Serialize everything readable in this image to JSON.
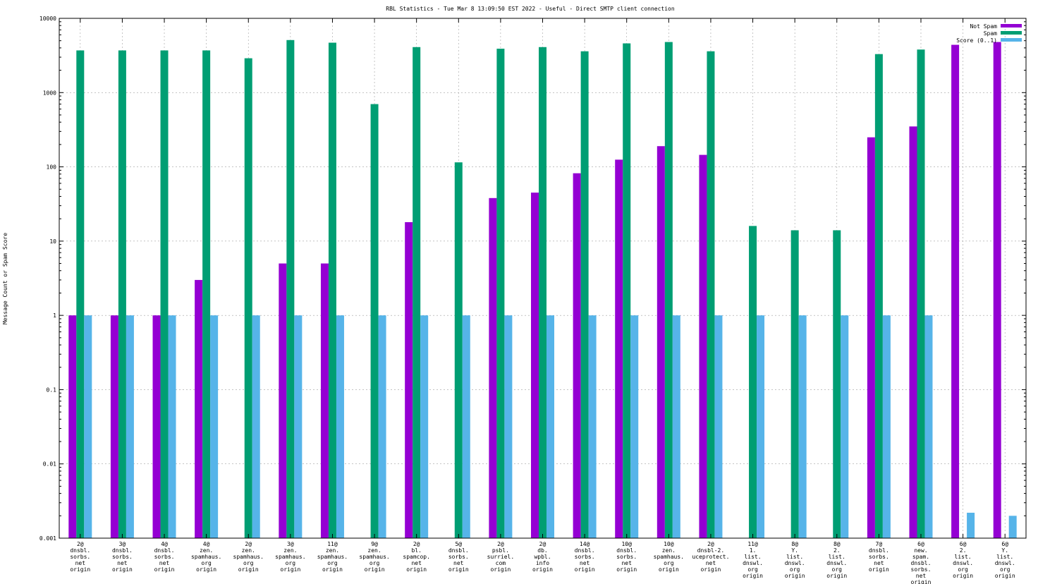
{
  "chart_data": {
    "type": "bar",
    "title": "RBL Statistics - Tue Mar  8 13:09:50 EST 2022 - Useful - Direct SMTP client connection",
    "ylabel": "Message Count or Spam Score",
    "xlabel": "",
    "yscale": "log",
    "ylim": [
      0.001,
      10000
    ],
    "yticks": [
      "0.001",
      "0.01",
      "0.1",
      "1",
      "10",
      "100",
      "1000",
      "10000"
    ],
    "grid": true,
    "legend_position": "top-right",
    "categories": [
      [
        "2@",
        "dnsbl.",
        "sorbs.",
        "net",
        "origin"
      ],
      [
        "3@",
        "dnsbl.",
        "sorbs.",
        "net",
        "origin"
      ],
      [
        "4@",
        "dnsbl.",
        "sorbs.",
        "net",
        "origin"
      ],
      [
        "4@",
        "zen.",
        "spamhaus.",
        "org",
        "origin"
      ],
      [
        "2@",
        "zen.",
        "spamhaus.",
        "org",
        "origin"
      ],
      [
        "3@",
        "zen.",
        "spamhaus.",
        "org",
        "origin"
      ],
      [
        "11@",
        "zen.",
        "spamhaus.",
        "org",
        "origin"
      ],
      [
        "9@",
        "zen.",
        "spamhaus.",
        "org",
        "origin"
      ],
      [
        "2@",
        "bl.",
        "spamcop.",
        "net",
        "origin"
      ],
      [
        "5@",
        "dnsbl.",
        "sorbs.",
        "net",
        "origin"
      ],
      [
        "2@",
        "psbl.",
        "surriel.",
        "com",
        "origin"
      ],
      [
        "2@",
        "db.",
        "wpbl.",
        "info",
        "origin"
      ],
      [
        "14@",
        "dnsbl.",
        "sorbs.",
        "net",
        "origin"
      ],
      [
        "10@",
        "dnsbl.",
        "sorbs.",
        "net",
        "origin"
      ],
      [
        "10@",
        "zen.",
        "spamhaus.",
        "org",
        "origin"
      ],
      [
        "2@",
        "dnsbl-2.",
        "uceprotect.",
        "net",
        "origin"
      ],
      [
        "11@",
        "1.",
        "list.",
        "dnswl.",
        "org",
        "origin"
      ],
      [
        "8@",
        "Y.",
        "list.",
        "dnswl.",
        "org",
        "origin"
      ],
      [
        "8@",
        "2.",
        "list.",
        "dnswl.",
        "org",
        "origin"
      ],
      [
        "7@",
        "dnsbl.",
        "sorbs.",
        "net",
        "origin"
      ],
      [
        "6@",
        "new.",
        "spam.",
        "dnsbl.",
        "sorbs.",
        "net",
        "origin"
      ],
      [
        "6@",
        "2.",
        "list.",
        "dnswl.",
        "org",
        "origin"
      ],
      [
        "6@",
        "Y.",
        "list.",
        "dnswl.",
        "org",
        "origin"
      ]
    ],
    "series": [
      {
        "name": "Not Spam",
        "color": "#9400d3",
        "values": [
          1,
          1,
          1,
          3,
          null,
          5,
          5,
          null,
          18,
          null,
          38,
          45,
          82,
          125,
          190,
          145,
          null,
          null,
          null,
          250,
          350,
          4400,
          4800
        ]
      },
      {
        "name": "Spam",
        "color": "#009e73",
        "values": [
          3700,
          3700,
          3700,
          3700,
          2900,
          5100,
          4700,
          700,
          4100,
          115,
          3900,
          4100,
          3600,
          4600,
          4800,
          3600,
          16,
          14,
          14,
          3300,
          3800,
          null,
          null
        ]
      },
      {
        "name": "Score (0..1)",
        "color": "#56b4e9",
        "values": [
          1,
          1,
          1,
          1,
          1,
          1,
          1,
          1,
          1,
          1,
          1,
          1,
          1,
          1,
          1,
          1,
          1,
          1,
          1,
          1,
          1,
          0.0022,
          0.002
        ]
      }
    ]
  }
}
